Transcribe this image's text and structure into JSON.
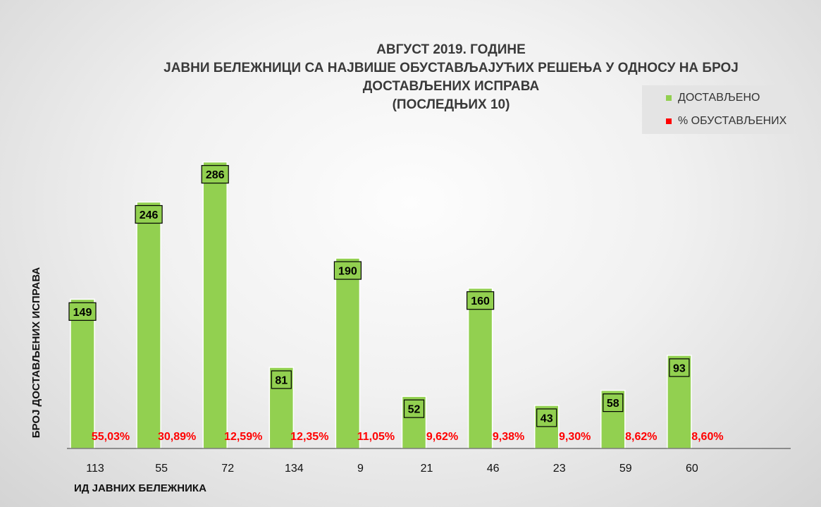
{
  "chart_data": {
    "type": "bar",
    "title_lines": [
      "АВГУСТ 2019. ГОДИНЕ",
      "ЈАВНИ БЕЛЕЖНИЦИ СА НАЈВИШЕ ОБУСТАВЉАЈУЋИХ РЕШЕЊА У ОДНОСУ НА БРОЈ",
      "ДОСТАВЉЕНИХ ИСПРАВА",
      "(ПОСЛЕДЊИХ 10)"
    ],
    "xlabel": "ИД ЈАВНИХ БЕЛЕЖНИКА",
    "ylabel": "БРОЈ ДОСТАВЉЕНИХ ИСПРАВА",
    "categories": [
      "113",
      "55",
      "72",
      "134",
      "9",
      "21",
      "46",
      "23",
      "59",
      "60"
    ],
    "series": [
      {
        "name": "ДОСТАВЉЕНО",
        "color": "#92d050",
        "values": [
          149,
          246,
          286,
          81,
          190,
          52,
          160,
          43,
          58,
          93
        ]
      },
      {
        "name": "% ОБУСТАВЉЕНИХ",
        "color": "#ff0000",
        "values": [
          55.03,
          30.89,
          12.59,
          12.35,
          11.05,
          9.62,
          9.38,
          9.3,
          8.62,
          8.6
        ],
        "labels": [
          "55,03%",
          "30,89%",
          "12,59%",
          "12,35%",
          "11,05%",
          "9,62%",
          "9,38%",
          "9,30%",
          "8,62%",
          "8,60%"
        ]
      }
    ],
    "ylim": [
      0,
      290
    ],
    "grid": false,
    "legend_position": "top-right"
  }
}
